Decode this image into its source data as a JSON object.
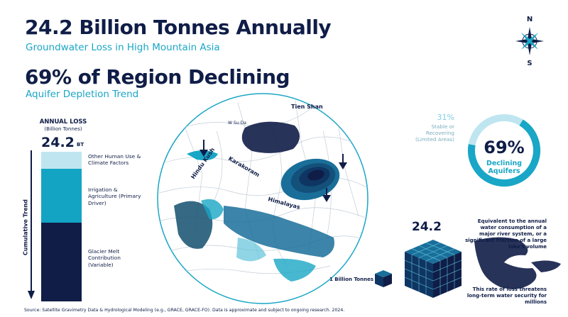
{
  "header": {
    "title1": "24.2 Billion Tonnes Annually",
    "subtitle1": "Groundwater Loss in High Mountain Asia",
    "title2": "69% of Region Declining",
    "subtitle2": "Aquifer Depletion Trend"
  },
  "compass": {
    "north": "N",
    "south": "S"
  },
  "annual_loss": {
    "title": "ANNUAL LOSS",
    "unit_label": "(Billion Tonnes)",
    "value": "24.2",
    "value_unit": "BT",
    "axis_label": "Cumulative Trend",
    "segments": [
      {
        "label": "Other Human Use & Climate Factors",
        "color": "#bfe6f0"
      },
      {
        "label": "Irrigation & Agriculture (Primary Driver)",
        "color": "#13a4c4"
      },
      {
        "label": "Glacier Melt Contribution (Variable)",
        "color": "#0f1d47"
      }
    ]
  },
  "map_labels": {
    "tien_shan": "Tien Shan",
    "w_su_da": "W Su-Da",
    "hindu_kush": "Hindu Kush",
    "karakoram": "Karakoram",
    "himalayas": "Himalayas"
  },
  "ring": {
    "declining_pct": "69%",
    "declining_label": "Declining Aquifers",
    "declining_fraction": 0.69,
    "stable_pct": "31%",
    "stable_label": "Stable or Recovering (Limited Areas)"
  },
  "cube": {
    "value": "24.2",
    "unit_label": "1 Billion Tonnes",
    "equivalent": "Equivalent to the annual water consumption of a major river system, or a significant fraction of a large lake's volume",
    "threat": "This rate of loss threatens long-term water security for millions"
  },
  "footer": {
    "source": "Source: Satellite Gravimetry Data & Hydrological Modeling (e.g., GRACE, GRACE-FO). Data is approximate and subject to ongoing research. 2024."
  },
  "colors": {
    "navy": "#0f1d47",
    "teal": "#1aa6c6",
    "light": "#bfe6f0"
  }
}
